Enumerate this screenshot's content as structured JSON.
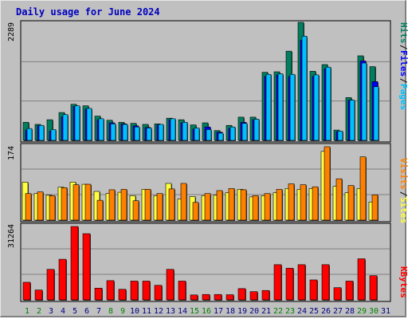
{
  "title": "Daily usage for June 2024",
  "colors": {
    "hits": "#007f5f",
    "files": "#0000ff",
    "pages": "#00c0ff",
    "visits": "#ff8000",
    "sites": "#ffff40",
    "kbytes": "#ff0000",
    "background": "#c0c0c0",
    "grid": "#808080",
    "weekend": "#008000",
    "weekday": "#000080"
  },
  "chart_data": [
    {
      "type": "bar",
      "categories": [
        "1",
        "2",
        "3",
        "4",
        "5",
        "6",
        "7",
        "8",
        "9",
        "10",
        "11",
        "12",
        "13",
        "14",
        "15",
        "16",
        "17",
        "18",
        "19",
        "20",
        "21",
        "22",
        "23",
        "24",
        "25",
        "26",
        "27",
        "28",
        "29",
        "30",
        "31"
      ],
      "weekend_days": [
        "1",
        "2",
        "8",
        "9",
        "15",
        "16",
        "22",
        "23",
        "29",
        "30"
      ],
      "ylim": [
        0,
        2289
      ],
      "max_label": "2289",
      "series": [
        {
          "name": "Hits",
          "values": [
            350,
            310,
            400,
            540,
            700,
            670,
            470,
            390,
            350,
            330,
            310,
            320,
            430,
            400,
            300,
            340,
            190,
            290,
            450,
            450,
            1320,
            1330,
            1730,
            2289,
            1340,
            1470,
            200,
            830,
            1640,
            1430,
            0
          ]
        },
        {
          "name": "Files",
          "values": [
            200,
            290,
            180,
            460,
            660,
            610,
            400,
            340,
            320,
            280,
            250,
            300,
            400,
            340,
            220,
            260,
            160,
            230,
            350,
            400,
            1240,
            1270,
            1240,
            1940,
            1240,
            1390,
            170,
            780,
            1540,
            1140,
            0
          ]
        },
        {
          "name": "Pages",
          "values": [
            230,
            290,
            210,
            500,
            670,
            620,
            420,
            320,
            310,
            260,
            240,
            310,
            420,
            350,
            240,
            210,
            140,
            260,
            330,
            410,
            1280,
            1290,
            1280,
            2020,
            1270,
            1420,
            180,
            780,
            1500,
            1040,
            0
          ]
        }
      ]
    },
    {
      "type": "bar",
      "categories": [
        "1",
        "2",
        "3",
        "4",
        "5",
        "6",
        "7",
        "8",
        "9",
        "10",
        "11",
        "12",
        "13",
        "14",
        "15",
        "16",
        "17",
        "18",
        "19",
        "20",
        "21",
        "22",
        "23",
        "24",
        "25",
        "26",
        "27",
        "28",
        "29",
        "30",
        "31"
      ],
      "ylim": [
        0,
        174
      ],
      "max_label": "174",
      "series": [
        {
          "name": "Sites",
          "values": [
            90,
            63,
            59,
            78,
            90,
            85,
            68,
            63,
            66,
            58,
            73,
            58,
            87,
            50,
            56,
            58,
            59,
            65,
            73,
            55,
            58,
            65,
            75,
            73,
            75,
            163,
            80,
            65,
            75,
            43,
            0
          ]
        },
        {
          "name": "Visits",
          "values": [
            63,
            67,
            58,
            77,
            84,
            85,
            47,
            72,
            73,
            46,
            73,
            63,
            74,
            87,
            42,
            63,
            70,
            75,
            72,
            58,
            63,
            73,
            86,
            84,
            79,
            174,
            98,
            82,
            150,
            60,
            0
          ]
        }
      ]
    },
    {
      "type": "bar",
      "categories": [
        "1",
        "2",
        "3",
        "4",
        "5",
        "6",
        "7",
        "8",
        "9",
        "10",
        "11",
        "12",
        "13",
        "14",
        "15",
        "16",
        "17",
        "18",
        "19",
        "20",
        "21",
        "22",
        "23",
        "24",
        "25",
        "26",
        "27",
        "28",
        "29",
        "30",
        "31"
      ],
      "ylim": [
        0,
        31264
      ],
      "max_label": "31264",
      "series": [
        {
          "name": "KBytes",
          "values": [
            7500,
            4200,
            13000,
            17300,
            31264,
            28200,
            5000,
            8200,
            4500,
            8000,
            8000,
            6200,
            13000,
            8000,
            2100,
            2300,
            2300,
            2200,
            4800,
            3500,
            4000,
            15000,
            13500,
            15000,
            8500,
            15000,
            5200,
            8000,
            17500,
            10300,
            0
          ]
        }
      ]
    }
  ],
  "right_labels": {
    "top": [
      {
        "text": "Hits",
        "key": "hits"
      },
      {
        "text": "Files",
        "key": "files"
      },
      {
        "text": "Pages",
        "key": "pages"
      }
    ],
    "middle": [
      {
        "text": "Visits",
        "key": "visits"
      },
      {
        "text": "Sites",
        "key": "sites"
      }
    ],
    "bottom": [
      {
        "text": "KBytes",
        "key": "kbytes"
      }
    ]
  },
  "separator": "/"
}
